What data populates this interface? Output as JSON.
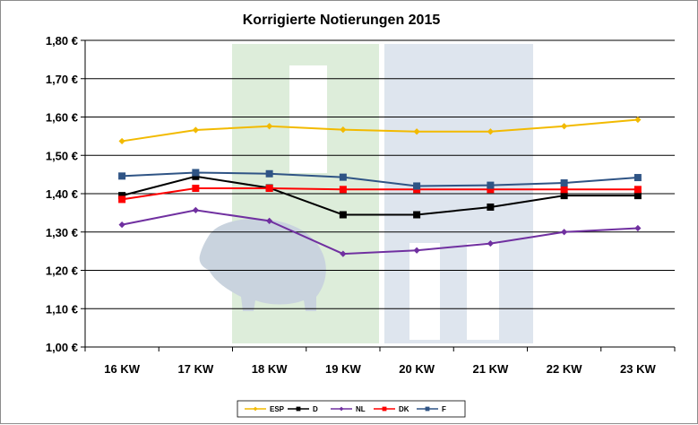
{
  "chart_data": {
    "type": "line",
    "title": "Korrigierte Notierungen 2015",
    "xlabel": "",
    "ylabel": "",
    "categories": [
      "16 KW",
      "17 KW",
      "18 KW",
      "19 KW",
      "20 KW",
      "21 KW",
      "22 KW",
      "23 KW"
    ],
    "ylim": [
      1.0,
      1.8
    ],
    "yticks": [
      1.0,
      1.1,
      1.2,
      1.3,
      1.4,
      1.5,
      1.6,
      1.7,
      1.8
    ],
    "ytick_labels": [
      "1,00 €",
      "1,10 €",
      "1,20 €",
      "1,30 €",
      "1,40 €",
      "1,50 €",
      "1,60 €",
      "1,70 €",
      "1,80 €"
    ],
    "grid": "horizontal",
    "legend_position": "bottom",
    "series": [
      {
        "name": "ESP",
        "color": "#F2BA00",
        "marker": "diamond",
        "values": [
          1.537,
          1.566,
          1.576,
          1.567,
          1.562,
          1.562,
          1.576,
          1.593
        ]
      },
      {
        "name": "D",
        "color": "#000000",
        "marker": "square",
        "values": [
          1.395,
          1.445,
          1.415,
          1.345,
          1.345,
          1.365,
          1.395,
          1.395
        ]
      },
      {
        "name": "NL",
        "color": "#7030A0",
        "marker": "diamond",
        "values": [
          1.319,
          1.357,
          1.329,
          1.243,
          1.252,
          1.27,
          1.3,
          1.31
        ]
      },
      {
        "name": "DK",
        "color": "#FF0000",
        "marker": "square",
        "values": [
          1.385,
          1.414,
          1.414,
          1.411,
          1.411,
          1.411,
          1.411,
          1.411
        ]
      },
      {
        "name": "F",
        "color": "#2F5485",
        "marker": "square",
        "values": [
          1.446,
          1.455,
          1.452,
          1.443,
          1.42,
          1.422,
          1.428,
          1.442
        ]
      }
    ]
  },
  "watermark": {
    "colors": [
      "#DDEDDA",
      "#DEE5EE",
      "#C9D3DE"
    ],
    "icon": "pig-logo-watermark"
  }
}
